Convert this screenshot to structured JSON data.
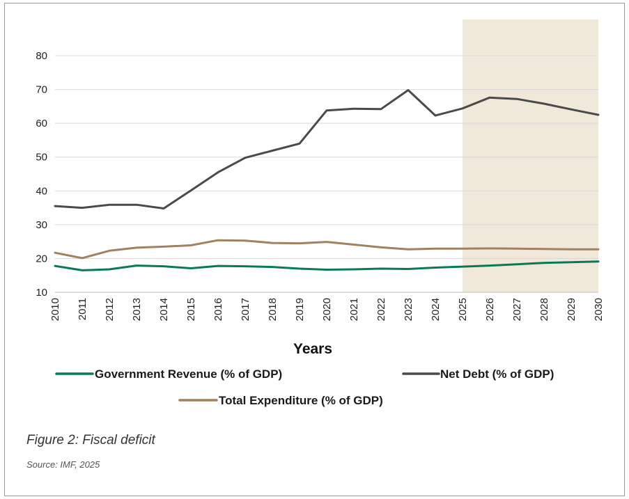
{
  "chart_data": {
    "type": "line",
    "xlabel": "Years",
    "ylabel": "",
    "ylim": [
      10,
      80
    ],
    "yticks": [
      "10",
      "20",
      "30",
      "40",
      "50",
      "60",
      "70",
      "80"
    ],
    "categories": [
      "2010",
      "2011",
      "2012",
      "2013",
      "2014",
      "2015",
      "2016",
      "2017",
      "2018",
      "2019",
      "2020",
      "2021",
      "2022",
      "2023",
      "2024",
      "2025",
      "2026",
      "2027",
      "2028",
      "2029",
      "2030"
    ],
    "projection_shading": {
      "from": "2025",
      "to": "2030",
      "color": "#f1e8dc"
    },
    "grid": "horizontal",
    "series": [
      {
        "name": "Government Revenue (% of GDP)",
        "color": "#0a7a55",
        "values": [
          17.8,
          16.5,
          16.8,
          17.9,
          17.7,
          17.1,
          17.8,
          17.7,
          17.5,
          17.0,
          16.7,
          16.8,
          17.0,
          16.9,
          17.3,
          17.6,
          17.9,
          18.3,
          18.7,
          18.9,
          19.1
        ]
      },
      {
        "name": "Net Debt (% of GDP)",
        "color": "#4a4a4a",
        "values": [
          35.5,
          35.0,
          35.9,
          35.9,
          34.8,
          40.1,
          45.5,
          49.8,
          51.9,
          54.0,
          63.8,
          64.3,
          64.2,
          69.8,
          62.3,
          64.4,
          67.6,
          67.2,
          65.8,
          64.1,
          62.5
        ]
      },
      {
        "name": "Total Expenditure (% of GDP)",
        "color": "#a08260",
        "values": [
          21.7,
          20.1,
          22.3,
          23.2,
          23.5,
          23.9,
          25.4,
          25.3,
          24.6,
          24.5,
          24.9,
          24.1,
          23.3,
          22.7,
          22.9,
          22.9,
          23.0,
          22.9,
          22.8,
          22.7,
          22.7
        ]
      }
    ]
  },
  "caption": {
    "figure": "Figure 2: Fiscal deficit",
    "source": "Source: IMF, 2025"
  }
}
